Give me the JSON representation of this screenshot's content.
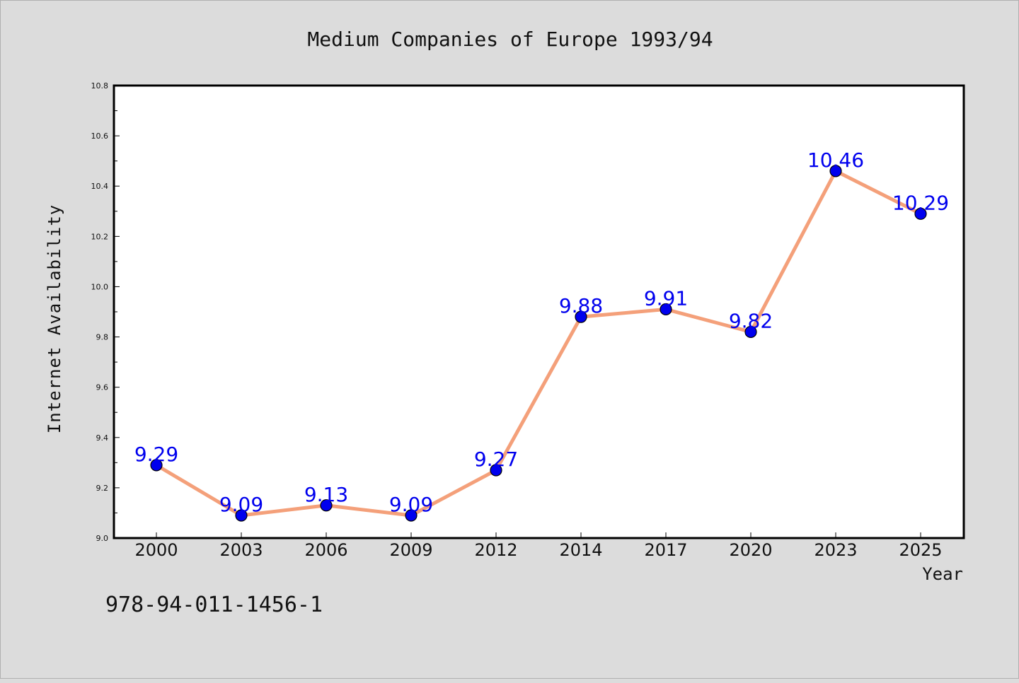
{
  "chart_data": {
    "type": "line",
    "title": "Medium Companies of Europe 1993/94",
    "xlabel": "Year",
    "ylabel": "Internet Availability",
    "categories": [
      "2000",
      "2003",
      "2006",
      "2009",
      "2012",
      "2014",
      "2017",
      "2020",
      "2023",
      "2025"
    ],
    "series": [
      {
        "values": [
          9.29,
          9.09,
          9.13,
          9.09,
          9.27,
          9.88,
          9.91,
          9.82,
          10.46,
          10.29
        ],
        "labels": [
          "9.29",
          "9.09",
          "9.13",
          "9.09",
          "9.27",
          "9.88",
          "9.91",
          "9.82",
          "10.46",
          "10.29"
        ]
      }
    ],
    "ylim": [
      9.0,
      10.8
    ],
    "yticks": [
      "9.0",
      "9.2",
      "9.4",
      "9.6",
      "9.8",
      "10.0",
      "10.2",
      "10.4",
      "10.6",
      "10.8"
    ],
    "grid": false,
    "legend": "none",
    "colors": {
      "line": "#f4a07a",
      "marker": "#0000ee",
      "label": "#0000ee",
      "background": "#dcdcdc",
      "plot_background": "#ffffff"
    }
  },
  "footnote": "978-94-011-1456-1"
}
